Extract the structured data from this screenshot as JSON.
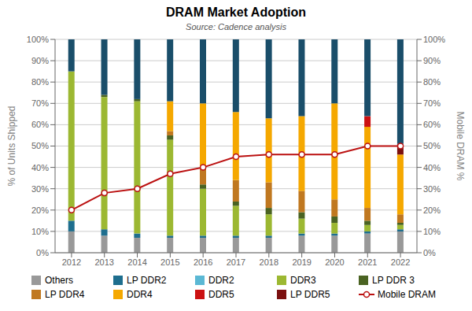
{
  "chart_data": {
    "type": "bar",
    "stacked": true,
    "title": "DRAM Market Adoption",
    "subtitle": "Source: Cadence analysis",
    "ylabel": "% of Units Shipped",
    "y2label": "Mobile DRAM %",
    "categories": [
      "2012",
      "2013",
      "2014",
      "2015",
      "2016",
      "2017",
      "2018",
      "2019",
      "2020",
      "2021",
      "2022"
    ],
    "series": [
      {
        "name": "Others",
        "color": "#999999",
        "values": [
          10,
          8,
          7,
          7,
          7,
          7,
          7,
          8,
          8,
          9,
          10
        ]
      },
      {
        "name": "LP DDR2",
        "color": "#1E6E8E",
        "values": [
          5,
          3,
          2,
          1,
          1,
          1,
          1,
          1,
          1,
          1,
          1
        ]
      },
      {
        "name": "DDR2",
        "color": "#5BB8D4",
        "values": [
          0,
          0,
          0,
          0,
          0,
          0,
          0,
          0,
          0,
          0,
          0
        ]
      },
      {
        "name": "DDR3",
        "color": "#9CB832",
        "values": [
          70,
          62,
          62,
          45,
          22,
          14,
          10,
          7,
          5,
          3,
          2
        ]
      },
      {
        "name": "LP DDR 3",
        "color": "#4A6322",
        "values": [
          0,
          1,
          1,
          2,
          2,
          2,
          3,
          3,
          3,
          2,
          1
        ]
      },
      {
        "name": "LP DDR4",
        "color": "#C07820",
        "values": [
          0,
          0,
          0,
          2,
          8,
          10,
          12,
          10,
          8,
          6,
          4
        ]
      },
      {
        "name": "DDR4",
        "color": "#F5A800",
        "values": [
          0,
          0,
          0,
          14,
          30,
          32,
          30,
          35,
          45,
          38,
          28
        ]
      },
      {
        "name": "DDR5",
        "color": "#CC1111",
        "values": [
          0,
          0,
          0,
          0,
          0,
          0,
          0,
          0,
          0,
          5,
          0
        ]
      },
      {
        "name": "LP DDR5",
        "color": "#7B1010",
        "values": [
          0,
          0,
          0,
          0,
          0,
          0,
          0,
          0,
          0,
          0,
          5
        ]
      },
      {
        "color": "#1A4E6A",
        "values": [
          15,
          26,
          28,
          29,
          30,
          34,
          37,
          36,
          30,
          36,
          49
        ]
      },
      {
        "name": "Mobile DRAM",
        "type": "line",
        "axis": "y2",
        "color": "#BB1111",
        "marker": "circle",
        "line_style": "solid",
        "values": [
          20,
          28,
          30,
          37,
          40,
          45,
          46,
          46,
          46,
          50,
          50
        ]
      }
    ],
    "ylim": [
      0,
      100
    ],
    "yticks": [
      {
        "value": 0,
        "label": "0%"
      },
      {
        "value": 10,
        "label": "10%"
      },
      {
        "value": 20,
        "label": "20%"
      },
      {
        "value": 30,
        "label": "30%"
      },
      {
        "value": 40,
        "label": "40%"
      },
      {
        "value": 50,
        "label": "50%"
      },
      {
        "value": 60,
        "label": "60%"
      },
      {
        "value": 70,
        "label": "70%"
      },
      {
        "value": 80,
        "label": "80%"
      },
      {
        "value": 90,
        "label": "90%"
      },
      {
        "value": 100,
        "label": "100%"
      }
    ],
    "y2lim": [
      0,
      100
    ],
    "y2ticks": [
      {
        "value": 0,
        "label": "0%"
      },
      {
        "value": 10,
        "label": "10%"
      },
      {
        "value": 20,
        "label": "20%"
      },
      {
        "value": 30,
        "label": "30%"
      },
      {
        "value": 40,
        "label": "40%"
      },
      {
        "value": 50,
        "label": "50%"
      },
      {
        "value": 60,
        "label": "60%"
      },
      {
        "value": 70,
        "label": "70%"
      },
      {
        "value": 80,
        "label": "80%"
      },
      {
        "value": 90,
        "label": "90%"
      },
      {
        "value": 100,
        "label": "100%"
      }
    ],
    "grid": true,
    "legend": "bottom"
  }
}
